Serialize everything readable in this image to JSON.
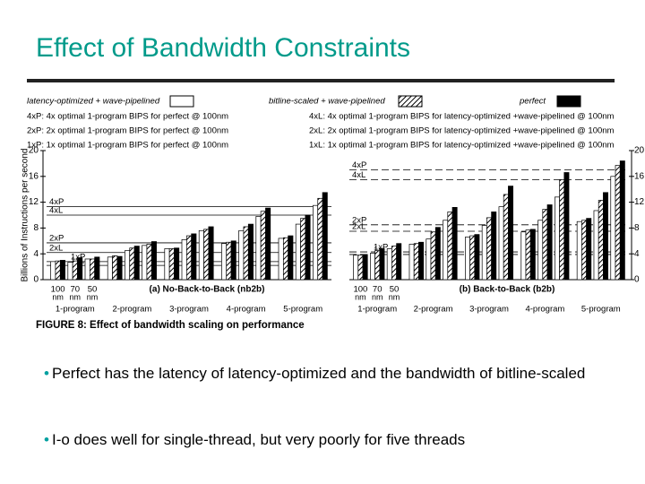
{
  "title": "Effect of Bandwidth Constraints",
  "bullets": [
    "Perfect has the latency of latency-optimized and the bandwidth of bitline-scaled",
    "I-o does well for single-thread, but very poorly for five threads"
  ],
  "chart_data": {
    "type": "grouped_bar",
    "caption": "FIGURE 8: Effect of bandwidth scaling on performance",
    "y_label": "Billions of Instructions per second",
    "groups": [
      "1-program",
      "2-program",
      "3-program",
      "4-program",
      "5-program"
    ],
    "categories": [
      "100",
      "70",
      "50",
      null,
      null,
      null,
      null,
      null,
      null,
      null,
      null,
      null,
      null,
      null,
      null
    ],
    "x_unit": "nm",
    "series": [
      {
        "name": "latency-optimized + wave-pipelined",
        "color": "#ffffff",
        "pattern": "none"
      },
      {
        "name": "bitline-scaled + wave-pipelined",
        "color": "#ffffff",
        "pattern": "hatch"
      },
      {
        "name": "perfect",
        "color": "#000000",
        "pattern": "none"
      }
    ],
    "reference_lines": [
      {
        "label": "4xP",
        "definition": "4xP: 4x optimal 1-program BIPS for perfect @ 100nm",
        "values": [
          11.3,
          17
        ]
      },
      {
        "label": "2xP",
        "definition": "2xP: 2x optimal 1-program BIPS for perfect @ 100nm",
        "values": [
          5.7,
          8.5
        ]
      },
      {
        "label": "1xP",
        "definition": "1xP: 1x optimal 1-program BIPS for perfect @ 100nm",
        "values": [
          2.8,
          4.3
        ]
      },
      {
        "label": "4xL",
        "definition": "4xL: 4x optimal 1-program BIPS for latency-optimized +wave-pipelined @ 100nm",
        "values": [
          10,
          15.5
        ]
      },
      {
        "label": "2xL",
        "definition": "2xL: 2x optimal 1-program BIPS for latency-optimized +wave-pipelined @ 100nm",
        "values": [
          4.2,
          7.5
        ]
      },
      {
        "label": "1xL",
        "definition": "1xL: 1x optimal 1-program BIPS for latency-optimized +wave-pipelined @ 100nm",
        "values": [
          2.2,
          3.9
        ]
      }
    ],
    "panels": [
      {
        "title": "(a) No-Back-to-Back (nb2b)",
        "line_style": "solid",
        "ylim": [
          0,
          20
        ],
        "yticks": [
          0,
          4,
          8,
          12,
          16,
          20
        ],
        "series_values": [
          [
            2.8,
            2.7,
            3.2,
            3.5,
            4.5,
            5.3,
            4.8,
            6.2,
            7.6,
            5.6,
            7.6,
            9.8,
            6.4,
            8.6,
            11.5
          ],
          [
            2.9,
            2.9,
            3.2,
            3.7,
            4.9,
            5.5,
            4.8,
            6.8,
            7.8,
            5.8,
            8.2,
            10.6,
            6.5,
            9.5,
            12.6
          ],
          [
            3,
            3.4,
            3.5,
            3.6,
            5.2,
            5.9,
            4.9,
            7.1,
            8.2,
            6,
            8.6,
            11.1,
            6.8,
            10,
            13.5
          ]
        ]
      },
      {
        "title": "(b) Back-to-Back (b2b)",
        "line_style": "dashed",
        "ylim": [
          0,
          20
        ],
        "yticks": [
          0,
          4,
          8,
          12,
          16,
          20
        ],
        "series_values": [
          [
            3.8,
            4.1,
            4.8,
            5.5,
            6.3,
            9.2,
            6.6,
            8.4,
            11.3,
            7.4,
            9.2,
            12.8,
            9,
            10.7,
            16
          ],
          [
            3.8,
            4.5,
            5.2,
            5.6,
            7.4,
            10.5,
            6.8,
            9.6,
            13.2,
            7.7,
            10.9,
            15.5,
            9.2,
            12.3,
            17.7
          ],
          [
            3.9,
            4.8,
            5.6,
            5.8,
            8.1,
            11.2,
            7,
            10.5,
            14.5,
            7.8,
            11.6,
            16.6,
            9.5,
            13.5,
            18.4
          ]
        ]
      }
    ]
  }
}
